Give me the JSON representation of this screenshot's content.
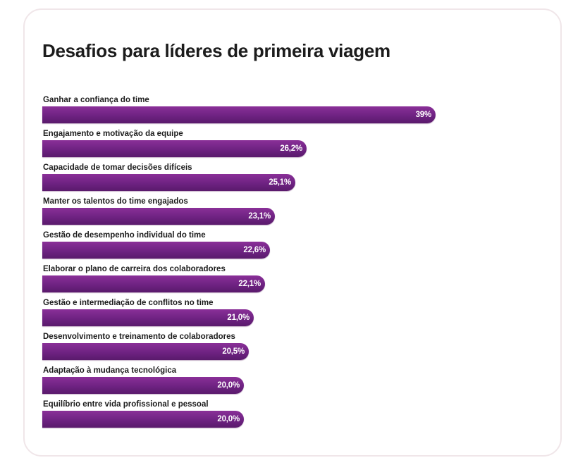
{
  "chart_data": {
    "type": "bar",
    "orientation": "horizontal",
    "title": "Desafios para líderes de primeira viagem",
    "categories": [
      "Ganhar a confiança do time",
      "Engajamento e motivação da equipe",
      "Capacidade de tomar decisões difíceis",
      "Manter os talentos do time engajados",
      "Gestão de desempenho individual do time",
      "Elaborar o plano de carreira dos colaboradores",
      "Gestão e intermediação de conflitos no time",
      "Desenvolvimento e treinamento de colaboradores",
      "Adaptação à mudança tecnológica",
      "Equilíbrio entre vida profissional e pessoal"
    ],
    "values": [
      39,
      26.2,
      25.1,
      23.1,
      22.6,
      22.1,
      21.0,
      20.5,
      20.0,
      20.0
    ],
    "value_labels": [
      "39%",
      "26,2%",
      "25,1%",
      "23,1%",
      "22,6%",
      "22,1%",
      "21,0%",
      "20,5%",
      "20,0%",
      "20,0%"
    ],
    "bar_color": "#6e2282",
    "grid": false,
    "legend": "none"
  }
}
